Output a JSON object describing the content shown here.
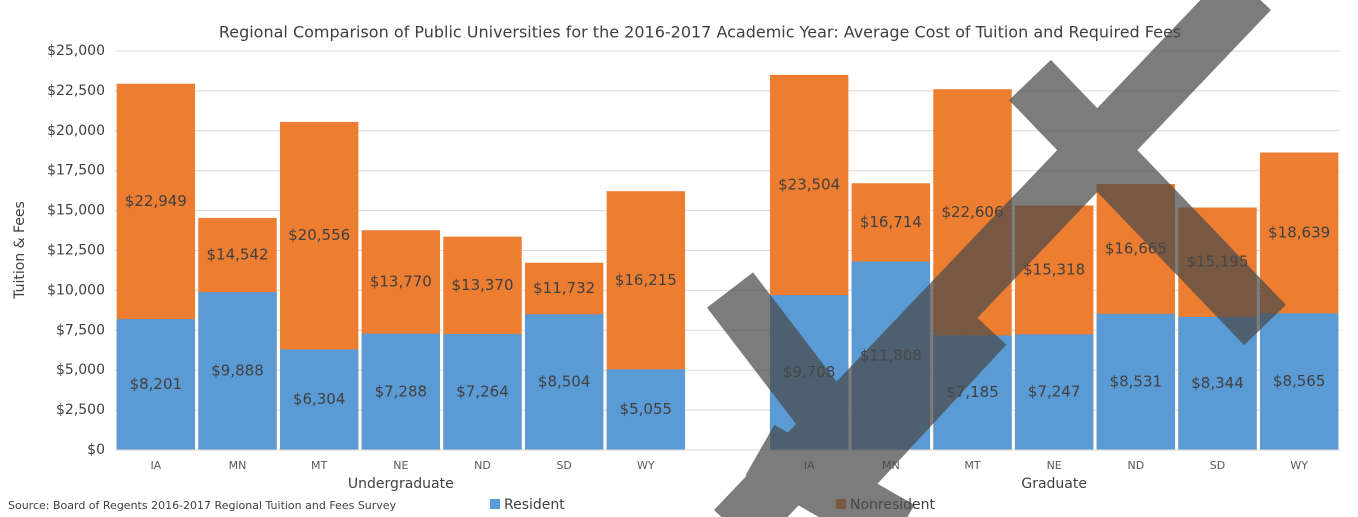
{
  "chart_data": {
    "type": "overlap-bar",
    "title": "Regional Comparison of Public Universities for the 2016-2017 Academic Year: Average Cost of Tuition and Required Fees",
    "y_label": "Tuition & Fees",
    "source": "Source: Board of Regents 2016-2017 Regional Tuition and Fees Survey",
    "categories": [
      "IA",
      "MN",
      "MT",
      "NE",
      "ND",
      "SD",
      "WY",
      null,
      "IA",
      "MN",
      "MT",
      "NE",
      "ND",
      "SD",
      "WY"
    ],
    "group_labels": [
      "Undergraduate",
      "Graduate"
    ],
    "series": [
      {
        "name": "Nonresident",
        "color": "#ed7d31",
        "values": [
          22949,
          14542,
          20556,
          13770,
          13370,
          11732,
          16215,
          null,
          23504,
          16714,
          22606,
          15318,
          16665,
          15195,
          18639
        ],
        "value_labels": [
          "$22,949",
          "$14,542",
          "$20,556",
          "$13,770",
          "$13,370",
          "$11,732",
          "$16,215",
          null,
          "$23,504",
          "$16,714",
          "$22,606",
          "$15,318",
          "$16,665",
          "$15,195",
          "$18,639"
        ]
      },
      {
        "name": "Resident",
        "color": "#5b9bd5",
        "values": [
          8201,
          9888,
          6304,
          7288,
          7264,
          8504,
          5055,
          null,
          9708,
          11808,
          7185,
          7247,
          8531,
          8344,
          8565
        ],
        "value_labels": [
          "$8,201",
          "$9,888",
          "$6,304",
          "$7,288",
          "$7,264",
          "$8,504",
          "$5,055",
          null,
          "$9,708",
          "$11,808",
          "$7,185",
          "$7,247",
          "$8,531",
          "$8,344",
          "$8,565"
        ]
      }
    ],
    "legend_order": [
      1,
      0
    ],
    "ylim": [
      0,
      25000
    ],
    "yticks": [
      {
        "value": 0,
        "label": "$0"
      },
      {
        "value": 2500,
        "label": "$2,500"
      },
      {
        "value": 5000,
        "label": "$5,000"
      },
      {
        "value": 7500,
        "label": "$7,500"
      },
      {
        "value": 10000,
        "label": "$10,000"
      },
      {
        "value": 12500,
        "label": "$12,500"
      },
      {
        "value": 15000,
        "label": "$15,000"
      },
      {
        "value": 17500,
        "label": "$17,500"
      },
      {
        "value": 20000,
        "label": "$20,000"
      },
      {
        "value": 22500,
        "label": "$22,500"
      },
      {
        "value": 25000,
        "label": "$25,000"
      }
    ],
    "grid": true
  }
}
